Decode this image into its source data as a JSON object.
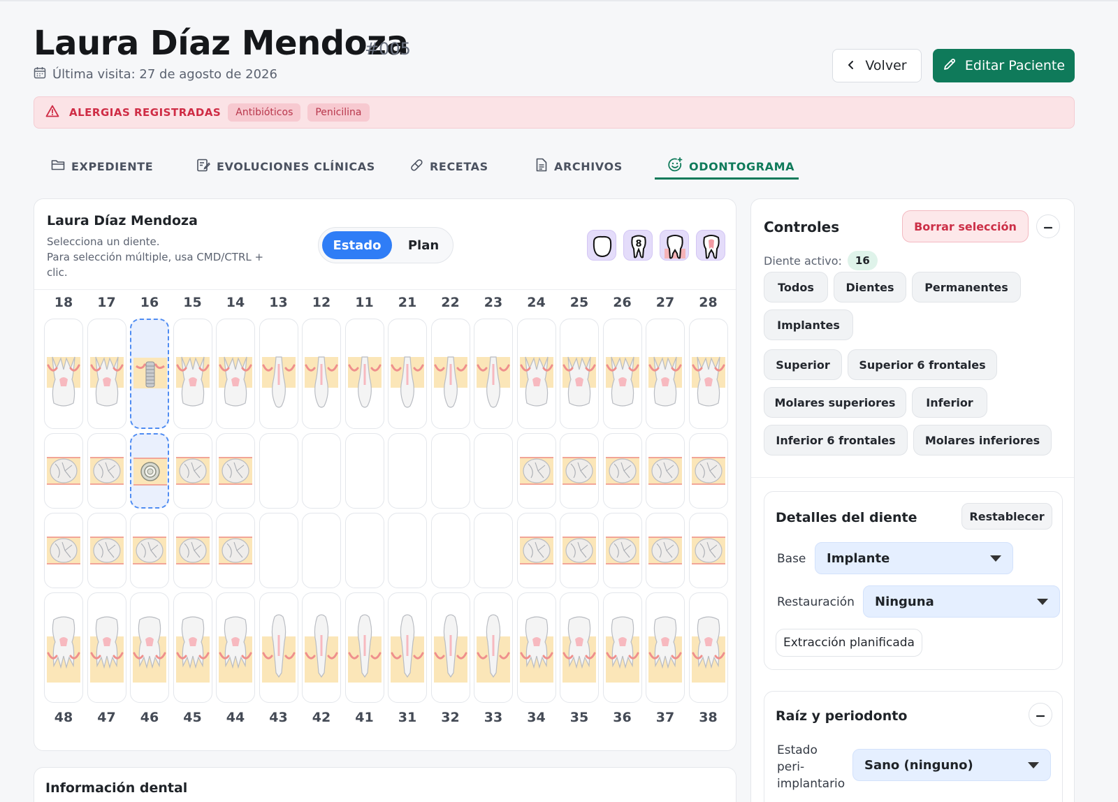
{
  "patient": {
    "name": "Laura Díaz Mendoza",
    "id": "#005",
    "last_visit": "Última visita: 27 de agosto de 2026"
  },
  "header": {
    "back_label": "Volver",
    "edit_label": "Editar Paciente"
  },
  "allergies": {
    "title": "ALERGIAS REGISTRADAS",
    "items": [
      "Antibióticos",
      "Penicilina"
    ]
  },
  "tabs": [
    {
      "label": "EXPEDIENTE",
      "icon": "folder-icon"
    },
    {
      "label": "EVOLUCIONES CLÍNICAS",
      "icon": "notes-icon"
    },
    {
      "label": "RECETAS",
      "icon": "pill-icon"
    },
    {
      "label": "ARCHIVOS",
      "icon": "file-icon"
    },
    {
      "label": "ODONTOGRAMA",
      "icon": "tooth-smile-icon",
      "active": true
    }
  ],
  "chart": {
    "title": "Laura Díaz Mendoza",
    "hint": "Selecciona un diente.\nPara selección múltiple, usa CMD/CTRL + clic.",
    "mode_estado": "Estado",
    "mode_plan": "Plan",
    "active_mode": "Estado",
    "upper_numbers": [
      "18",
      "17",
      "16",
      "15",
      "14",
      "13",
      "12",
      "11",
      "21",
      "22",
      "23",
      "24",
      "25",
      "26",
      "27",
      "28"
    ],
    "lower_numbers": [
      "48",
      "47",
      "46",
      "45",
      "44",
      "43",
      "42",
      "41",
      "31",
      "32",
      "33",
      "34",
      "35",
      "36",
      "37",
      "38"
    ],
    "selected_tooth": "16",
    "selected_tooth_base": "Implante"
  },
  "controls": {
    "title": "Controles",
    "clear_label": "Borrar selección",
    "active_label": "Diente activo:",
    "active_value": "16",
    "filters": [
      "Todos",
      "Dientes",
      "Permanentes",
      "Implantes",
      "Superior",
      "Superior 6 frontales",
      "Molares superiores",
      "Inferior",
      "Inferior 6 frontales",
      "Molares inferiores"
    ]
  },
  "details": {
    "title": "Detalles del diente",
    "reset_label": "Restablecer",
    "base_label": "Base",
    "base_value": "Implante",
    "restoration_label": "Restauración",
    "restoration_value": "Ninguna",
    "extraction_label": "Extracción planificada"
  },
  "root": {
    "title": "Raíz y periodonto",
    "state_label": "Estado peri-implantario",
    "state_value": "Sano (ninguno)"
  },
  "info": {
    "title": "Información dental"
  },
  "colors": {
    "accent": "#0f7a5a",
    "selection": "#2f7df6",
    "danger": "#cf2c45",
    "gum": "#f08a8a",
    "bone": "#fbe6b8"
  }
}
